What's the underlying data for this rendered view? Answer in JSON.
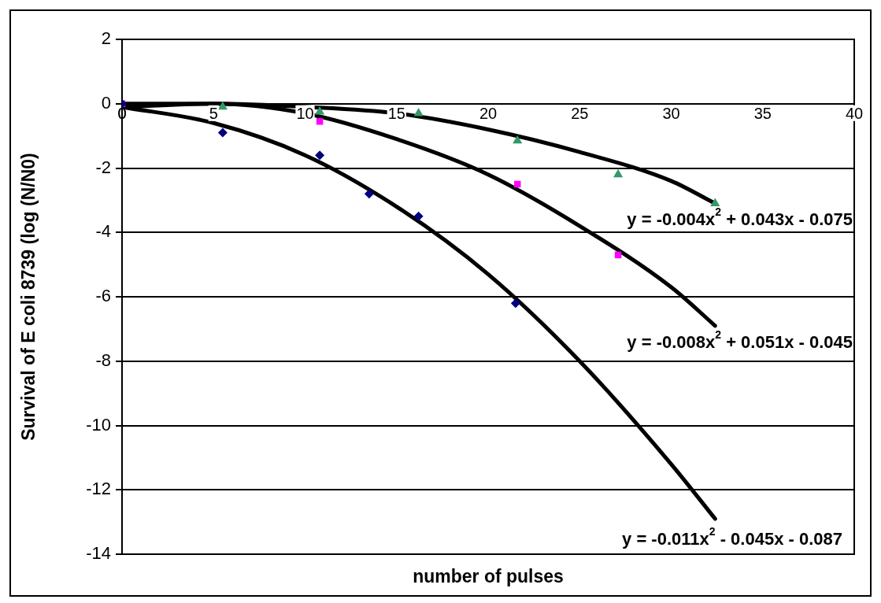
{
  "chart_data": {
    "type": "scatter",
    "xlabel": "number of pulses",
    "ylabel": "Survival of E coli 8739 (log (N/N0)",
    "xlim": [
      0,
      40
    ],
    "xticks": [
      0,
      5,
      10,
      15,
      20,
      25,
      30,
      35,
      40
    ],
    "ylim": [
      -14,
      2
    ],
    "yticks": [
      -14,
      -12,
      -10,
      -8,
      -6,
      -4,
      -2,
      0,
      2
    ],
    "grid": "y",
    "legend": false,
    "series": [
      {
        "type": "scatter",
        "color": "#000080",
        "marker": "diamond",
        "x": [
          0,
          5.5,
          10.8,
          13.5,
          16.2,
          21.5
        ],
        "values": [
          0,
          -0.9,
          -1.6,
          -2.8,
          -3.5,
          -6.2
        ]
      },
      {
        "type": "scatter",
        "color": "#ff00ff",
        "marker": "square",
        "x": [
          0,
          10.8,
          21.6,
          27.1
        ],
        "values": [
          0,
          -0.55,
          -2.5,
          -4.7
        ]
      },
      {
        "type": "scatter",
        "color": "#339966",
        "marker": "triangle",
        "x": [
          5.5,
          10.8,
          16.2,
          21.6,
          27.1,
          32.4
        ],
        "values": [
          -0.1,
          -0.25,
          -0.3,
          -1.15,
          -2.2,
          -3.1
        ]
      },
      {
        "type": "line",
        "color": "#000000",
        "marker": "none",
        "x": [
          0,
          5,
          10,
          15,
          20,
          25,
          30,
          32.4
        ],
        "values": [
          -0.1,
          -0.6,
          -1.6,
          -3.2,
          -5.3,
          -8.0,
          -11.2,
          -12.9
        ]
      },
      {
        "type": "line",
        "color": "#000000",
        "marker": "none",
        "x": [
          0,
          5,
          10,
          15,
          20,
          25,
          30,
          32.4
        ],
        "values": [
          0,
          0,
          -0.3,
          -1.1,
          -2.2,
          -3.8,
          -5.7,
          -6.9
        ]
      },
      {
        "type": "line",
        "color": "#000000",
        "marker": "none",
        "x": [
          0,
          5,
          10,
          15,
          20,
          25,
          30,
          32.4
        ],
        "values": [
          -0.1,
          0,
          -0.1,
          -0.3,
          -0.8,
          -1.5,
          -2.4,
          -3.1
        ]
      }
    ],
    "annotations": [
      "y = -0.004x$^{2}$ + 0.043x - 0.075",
      "y = -0.008x$^{2}$ + 0.051x - 0.045",
      "y = -0.011x$^{2}$ - 0.045x - 0.087"
    ]
  }
}
